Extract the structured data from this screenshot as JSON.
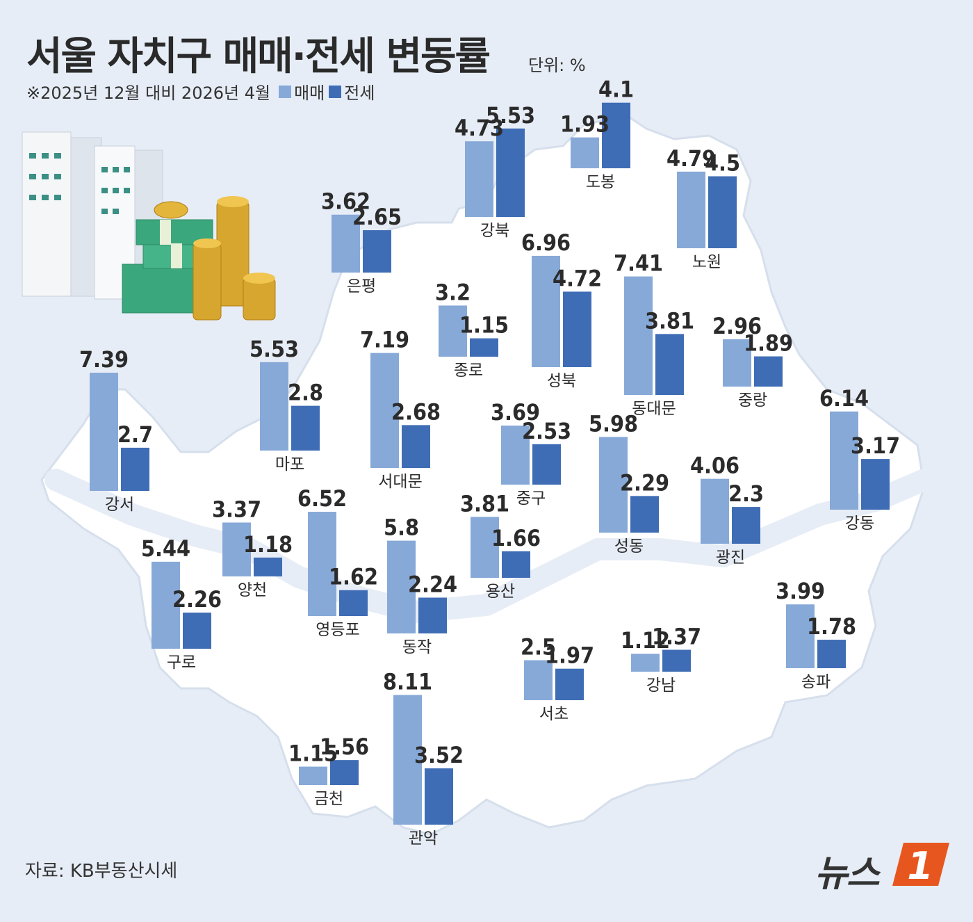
{
  "title": "서울 자치구 매매·전세 변동률",
  "unit": "단위: %",
  "subtitle": "※2025년 12월 대비 2026년 4월",
  "source": "자료: KB부동산시세",
  "logo_text": "뉴스",
  "logo_mark": "1",
  "colors": {
    "sale": "#87a9d8",
    "jeonse": "#3f6db5",
    "map": "#ffffff",
    "background": "#e7edf6"
  },
  "chart_data": {
    "type": "bar",
    "title": "서울 자치구 매매·전세 변동률",
    "unit": "%",
    "series_names": [
      "매매",
      "전세"
    ],
    "districts": [
      {
        "name": "강북",
        "sale": 4.73,
        "jeonse": 5.53
      },
      {
        "name": "도봉",
        "sale": 1.93,
        "jeonse": 4.1
      },
      {
        "name": "노원",
        "sale": 4.79,
        "jeonse": 4.5
      },
      {
        "name": "은평",
        "sale": 3.62,
        "jeonse": 2.65
      },
      {
        "name": "종로",
        "sale": 3.2,
        "jeonse": 1.15
      },
      {
        "name": "성북",
        "sale": 6.96,
        "jeonse": 4.72
      },
      {
        "name": "동대문",
        "sale": 7.41,
        "jeonse": 3.81
      },
      {
        "name": "중랑",
        "sale": 2.96,
        "jeonse": 1.89
      },
      {
        "name": "강서",
        "sale": 7.39,
        "jeonse": 2.7
      },
      {
        "name": "마포",
        "sale": 5.53,
        "jeonse": 2.8
      },
      {
        "name": "서대문",
        "sale": 7.19,
        "jeonse": 2.68
      },
      {
        "name": "중구",
        "sale": 3.69,
        "jeonse": 2.53
      },
      {
        "name": "성동",
        "sale": 5.98,
        "jeonse": 2.29
      },
      {
        "name": "광진",
        "sale": 4.06,
        "jeonse": 2.3
      },
      {
        "name": "강동",
        "sale": 6.14,
        "jeonse": 3.17
      },
      {
        "name": "양천",
        "sale": 3.37,
        "jeonse": 1.18
      },
      {
        "name": "영등포",
        "sale": 6.52,
        "jeonse": 1.62
      },
      {
        "name": "용산",
        "sale": 3.81,
        "jeonse": 1.66
      },
      {
        "name": "동작",
        "sale": 5.8,
        "jeonse": 2.24
      },
      {
        "name": "구로",
        "sale": 5.44,
        "jeonse": 2.26
      },
      {
        "name": "서초",
        "sale": 2.5,
        "jeonse": 1.97
      },
      {
        "name": "강남",
        "sale": 1.12,
        "jeonse": 1.37
      },
      {
        "name": "송파",
        "sale": 3.99,
        "jeonse": 1.78
      },
      {
        "name": "금천",
        "sale": 1.15,
        "jeonse": 1.56
      },
      {
        "name": "관악",
        "sale": 8.11,
        "jeonse": 3.52
      }
    ]
  }
}
